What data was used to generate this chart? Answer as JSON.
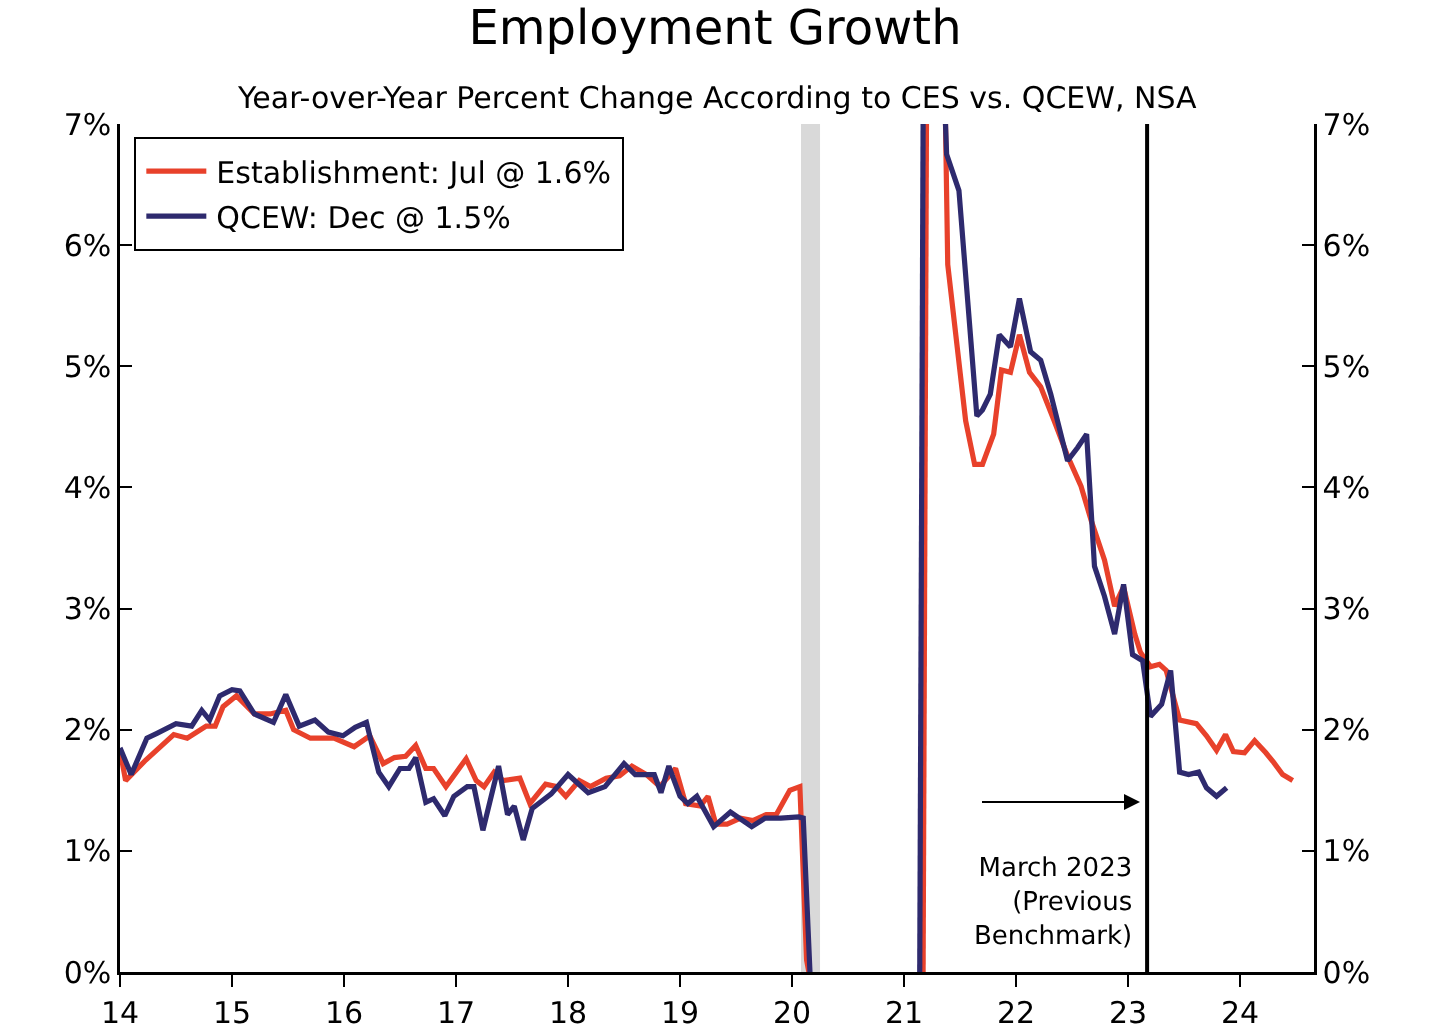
{
  "chart_data": {
    "type": "line",
    "title": "Employment Growth",
    "subtitle": "Year-over-Year Percent Change According to CES vs. QCEW, NSA",
    "series": [
      {
        "name": "Establishment: Jul @ 1.6%",
        "color": "#e8412b",
        "x": [
          14.0,
          14.05,
          14.23,
          14.48,
          14.6,
          14.77,
          14.85,
          14.92,
          15.04,
          15.2,
          15.34,
          15.48,
          15.55,
          15.7,
          15.91,
          16.09,
          16.23,
          16.35,
          16.45,
          16.55,
          16.64,
          16.73,
          16.8,
          16.91,
          17.09,
          17.18,
          17.25,
          17.34,
          17.42,
          17.57,
          17.66,
          17.8,
          17.9,
          17.98,
          18.1,
          18.2,
          18.34,
          18.46,
          18.57,
          18.7,
          18.82,
          18.96,
          19.05,
          19.18,
          19.25,
          19.32,
          19.42,
          19.54,
          19.65,
          19.77,
          19.86,
          19.98,
          20.07,
          20.13,
          20.15,
          null,
          21.17,
          21.2,
          null,
          21.37,
          21.39,
          21.55,
          21.63,
          21.7,
          21.8,
          21.87,
          21.95,
          22.03,
          22.12,
          22.22,
          22.34,
          22.46,
          22.58,
          22.67,
          22.79,
          22.88,
          22.96,
          23.06,
          23.11,
          23.2,
          23.28,
          23.34,
          23.46,
          23.61,
          23.7,
          23.79,
          23.87,
          23.94,
          24.04,
          24.13,
          24.23,
          24.3,
          24.38,
          24.47
        ],
        "values": [
          1.83,
          1.58,
          1.75,
          1.96,
          1.93,
          2.03,
          2.03,
          2.19,
          2.28,
          2.13,
          2.13,
          2.16,
          2.0,
          1.93,
          1.93,
          1.86,
          1.95,
          1.72,
          1.77,
          1.78,
          1.87,
          1.68,
          1.68,
          1.53,
          1.76,
          1.58,
          1.53,
          1.65,
          1.58,
          1.6,
          1.39,
          1.55,
          1.53,
          1.45,
          1.58,
          1.53,
          1.6,
          1.62,
          1.7,
          1.63,
          1.53,
          1.68,
          1.39,
          1.37,
          1.45,
          1.22,
          1.22,
          1.27,
          1.25,
          1.3,
          1.3,
          1.5,
          1.53,
          0.1,
          0,
          null,
          0,
          7,
          null,
          7,
          5.84,
          4.55,
          4.19,
          4.19,
          4.44,
          4.97,
          4.95,
          5.26,
          4.95,
          4.83,
          4.55,
          4.26,
          4.01,
          3.73,
          3.4,
          3.02,
          3.18,
          2.79,
          2.64,
          2.52,
          2.54,
          2.49,
          2.08,
          2.05,
          1.95,
          1.83,
          1.96,
          1.82,
          1.81,
          1.91,
          1.81,
          1.73,
          1.63,
          1.58
        ]
      },
      {
        "name": "QCEW: Dec @ 1.5%",
        "color": "#2e2a6e",
        "x": [
          14.0,
          14.1,
          14.24,
          14.33,
          14.5,
          14.64,
          14.73,
          14.8,
          14.89,
          15.0,
          15.07,
          15.2,
          15.37,
          15.48,
          15.6,
          15.74,
          15.86,
          15.99,
          16.1,
          16.2,
          16.31,
          16.4,
          16.5,
          16.58,
          16.64,
          16.73,
          16.8,
          16.9,
          16.98,
          17.1,
          17.16,
          17.24,
          17.38,
          17.46,
          17.52,
          17.6,
          17.68,
          17.85,
          18.0,
          18.18,
          18.33,
          18.5,
          18.6,
          18.77,
          18.83,
          18.9,
          19.0,
          19.07,
          19.15,
          19.3,
          19.45,
          19.64,
          19.76,
          19.9,
          20.06,
          20.1,
          20.16,
          null,
          21.14,
          21.17,
          null,
          21.37,
          21.38,
          21.49,
          21.65,
          21.7,
          21.77,
          21.85,
          21.95,
          22.03,
          22.13,
          22.22,
          22.31,
          22.46,
          22.55,
          22.63,
          22.7,
          22.79,
          22.88,
          22.96,
          23.04,
          23.13,
          23.2,
          23.3,
          23.38,
          23.46,
          23.54,
          23.63,
          23.7,
          23.79,
          23.88
        ],
        "values": [
          1.85,
          1.63,
          1.93,
          1.97,
          2.05,
          2.03,
          2.16,
          2.08,
          2.28,
          2.33,
          2.32,
          2.13,
          2.06,
          2.29,
          2.03,
          2.08,
          1.98,
          1.95,
          2.02,
          2.06,
          1.65,
          1.53,
          1.68,
          1.68,
          1.77,
          1.4,
          1.43,
          1.29,
          1.45,
          1.53,
          1.53,
          1.17,
          1.7,
          1.3,
          1.37,
          1.09,
          1.35,
          1.47,
          1.63,
          1.48,
          1.53,
          1.72,
          1.63,
          1.63,
          1.48,
          1.7,
          1.45,
          1.39,
          1.45,
          1.2,
          1.32,
          1.2,
          1.27,
          1.27,
          1.28,
          1.27,
          0,
          null,
          0,
          7,
          null,
          7,
          6.75,
          6.45,
          4.59,
          4.64,
          4.77,
          5.26,
          5.16,
          5.56,
          5.12,
          5.05,
          4.77,
          4.22,
          4.33,
          4.44,
          3.35,
          3.1,
          2.79,
          3.2,
          2.62,
          2.57,
          2.11,
          2.21,
          2.49,
          1.65,
          1.63,
          1.65,
          1.52,
          1.45,
          1.52
        ]
      }
    ],
    "xlim": [
      14,
      24.66
    ],
    "xticks": [
      14,
      15,
      16,
      17,
      18,
      19,
      20,
      21,
      22,
      23,
      24
    ],
    "ylim": [
      0,
      7
    ],
    "yticks": [
      {
        "value": 0,
        "label": "0%"
      },
      {
        "value": 1,
        "label": "1%"
      },
      {
        "value": 2,
        "label": "2%"
      },
      {
        "value": 3,
        "label": "3%"
      },
      {
        "value": 4,
        "label": "4%"
      },
      {
        "value": 5,
        "label": "5%"
      },
      {
        "value": 6,
        "label": "6%"
      },
      {
        "value": 7,
        "label": "7%"
      }
    ],
    "y2lim": [
      0,
      7
    ],
    "y2ticks": [
      {
        "value": 0,
        "label": "0%"
      },
      {
        "value": 1,
        "label": "1%"
      },
      {
        "value": 2,
        "label": "2%"
      },
      {
        "value": 3,
        "label": "3%"
      },
      {
        "value": 4,
        "label": "4%"
      },
      {
        "value": 5,
        "label": "5%"
      },
      {
        "value": 6,
        "label": "6%"
      },
      {
        "value": 7,
        "label": "7%"
      }
    ],
    "ref_lines": [
      {
        "axis": "x",
        "value": 23.17,
        "label": "March 2023\n(Previous\nBenchmark)",
        "color": "#000000"
      }
    ],
    "bands": [
      {
        "axis": "x",
        "from": 20.08,
        "to": 20.25,
        "color": "#d9d9d9"
      }
    ],
    "grid": false,
    "legend": "top left"
  }
}
